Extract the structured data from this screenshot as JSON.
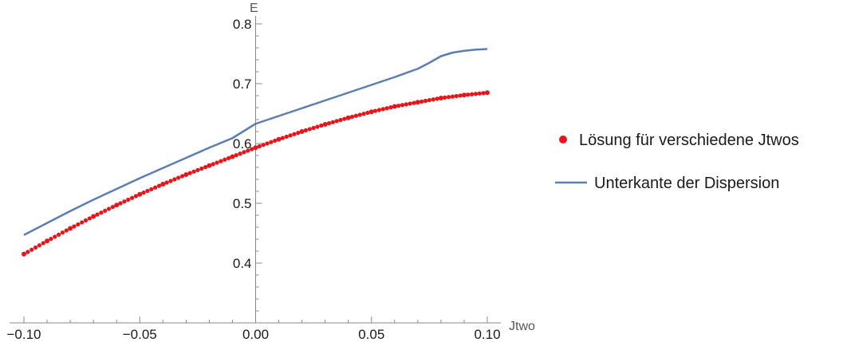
{
  "chart_data": {
    "type": "scatter",
    "xlabel": "Jtwo",
    "ylabel": "E",
    "xlim": [
      -0.1,
      0.1
    ],
    "ylim": [
      0.3,
      0.8
    ],
    "x_ticks": [
      "-0.10",
      "-0.05",
      "0.00",
      "0.05",
      "0.10"
    ],
    "y_ticks": [
      "0.4",
      "0.5",
      "0.6",
      "0.7",
      "0.8"
    ],
    "grid": false,
    "legend_position": "right",
    "series": [
      {
        "name": "Lösung für verschiedene Jtwos",
        "kind": "points",
        "color": "#e8141a",
        "x": [
          -0.1,
          -0.09,
          -0.08,
          -0.07,
          -0.06,
          -0.05,
          -0.04,
          -0.03,
          -0.02,
          -0.01,
          0.0,
          0.01,
          0.02,
          0.03,
          0.04,
          0.05,
          0.06,
          0.07,
          0.08,
          0.09,
          0.1
        ],
        "y": [
          0.415,
          0.437,
          0.458,
          0.478,
          0.497,
          0.515,
          0.532,
          0.548,
          0.563,
          0.578,
          0.593,
          0.607,
          0.62,
          0.632,
          0.643,
          0.653,
          0.662,
          0.669,
          0.676,
          0.681,
          0.685
        ]
      },
      {
        "name": "Unterkante der Dispersion",
        "kind": "line",
        "color": "#5b7db3",
        "x": [
          -0.1,
          -0.09,
          -0.08,
          -0.07,
          -0.06,
          -0.05,
          -0.04,
          -0.03,
          -0.02,
          -0.01,
          0.0,
          0.01,
          0.02,
          0.03,
          0.04,
          0.05,
          0.06,
          0.07,
          0.075,
          0.08,
          0.085,
          0.09,
          0.095,
          0.1
        ],
        "y": [
          0.447,
          0.467,
          0.487,
          0.506,
          0.524,
          0.542,
          0.559,
          0.576,
          0.593,
          0.609,
          0.633,
          0.646,
          0.659,
          0.672,
          0.685,
          0.698,
          0.711,
          0.725,
          0.735,
          0.746,
          0.752,
          0.755,
          0.757,
          0.758
        ]
      }
    ]
  }
}
